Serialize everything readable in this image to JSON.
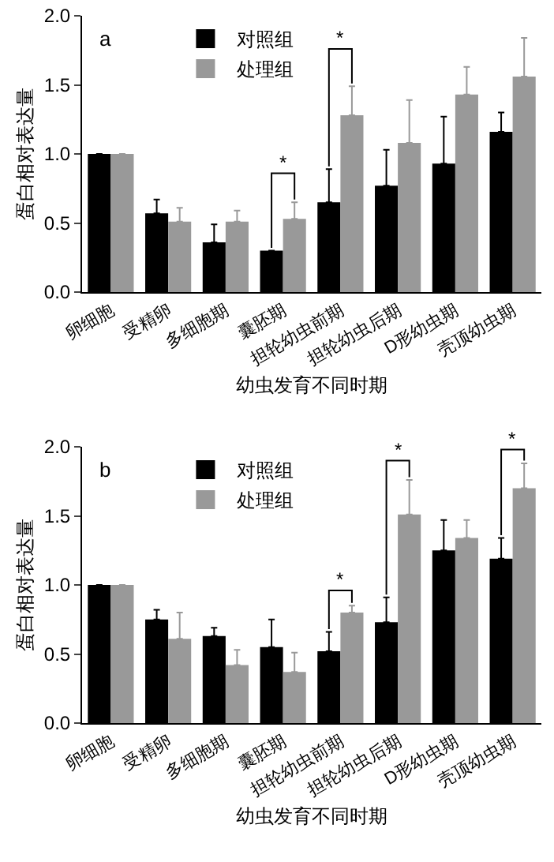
{
  "chart_data": [
    {
      "type": "bar",
      "annotations": [
        "a",
        "*",
        "*"
      ],
      "xlabel": "幼虫发育不同时期",
      "ylabel": "蛋白相对表达量",
      "categories": [
        "卵细胞",
        "受精卵",
        "多细胞期",
        "囊胚期",
        "担轮幼虫前期",
        "担轮幼虫后期",
        "D形幼虫期",
        "壳顶幼虫期"
      ],
      "series": [
        {
          "name": "对照组",
          "color": "#000000",
          "values": [
            1.0,
            0.57,
            0.36,
            0.3,
            0.65,
            0.77,
            0.93,
            1.16
          ],
          "errors": [
            null,
            [
              0.57,
              0.67
            ],
            [
              0.36,
              0.49
            ],
            null,
            [
              0.65,
              0.89
            ],
            [
              0.77,
              1.03
            ],
            [
              0.93,
              1.27
            ],
            [
              1.16,
              1.3
            ]
          ]
        },
        {
          "name": "处理组",
          "color": "#999999",
          "values": [
            1.0,
            0.51,
            0.51,
            0.53,
            1.28,
            1.08,
            1.43,
            1.56
          ],
          "errors": [
            null,
            [
              0.51,
              0.61
            ],
            [
              0.51,
              0.59
            ],
            [
              0.53,
              0.65
            ],
            [
              1.28,
              1.49
            ],
            [
              1.08,
              1.39
            ],
            [
              1.43,
              1.63
            ],
            [
              1.56,
              1.84
            ]
          ]
        }
      ],
      "ylim": [
        0,
        2
      ],
      "yticks": [
        {
          "value": 0,
          "label": "0.0"
        },
        {
          "value": 0.5,
          "label": "0.5"
        },
        {
          "value": 1,
          "label": "1.0"
        },
        {
          "value": 1.5,
          "label": "1.5"
        },
        {
          "value": 2,
          "label": "2.0"
        }
      ],
      "legend": "top"
    },
    {
      "type": "bar",
      "annotations": [
        "b",
        {
          "text": "*",
          "x": "担轮幼虫前期",
          "y": 0.85
        },
        {
          "text": "*",
          "x": "担轮幼虫后期",
          "y": 1.76
        },
        {
          "text": "*",
          "x": "壳顶幼虫期",
          "y": 1.88
        }
      ],
      "xlabel": "幼虫发育不同时期",
      "ylabel": "蛋白相对表达量",
      "categories": [
        "卵细胞",
        "受精卵",
        "多细胞期",
        "囊胚期",
        "担轮幼虫前期",
        "担轮幼虫后期",
        "D形幼虫期",
        "壳顶幼虫期"
      ],
      "series": [
        {
          "name": "对照组",
          "color": "#000000",
          "values": [
            1.0,
            0.75,
            0.63,
            0.55,
            0.52,
            0.73,
            1.25,
            1.19
          ],
          "errors": [
            null,
            [
              0.75,
              0.82
            ],
            [
              0.63,
              0.69
            ],
            [
              0.55,
              0.75
            ],
            [
              0.52,
              0.66
            ],
            [
              0.73,
              0.91
            ],
            [
              1.25,
              1.47
            ],
            [
              1.19,
              1.34
            ]
          ]
        },
        {
          "name": "处理组",
          "color": "#999999",
          "values": [
            1.0,
            0.61,
            0.42,
            0.37,
            0.8,
            1.51,
            1.34,
            1.7
          ],
          "errors": [
            null,
            [
              0.61,
              0.8
            ],
            [
              0.42,
              0.53
            ],
            [
              0.37,
              0.51
            ],
            [
              0.8,
              0.85
            ],
            [
              1.51,
              1.76
            ],
            [
              1.34,
              1.47
            ],
            [
              1.7,
              1.88
            ]
          ]
        }
      ],
      "ylim": [
        0,
        2
      ],
      "yticks": [
        {
          "value": 0,
          "label": "0.0"
        },
        {
          "value": 0.5,
          "label": "0.5"
        },
        {
          "value": 1,
          "label": "1.0"
        },
        {
          "value": 1.5,
          "label": "1.5"
        },
        {
          "value": 2,
          "label": "2.0"
        }
      ],
      "legend": "top"
    }
  ]
}
